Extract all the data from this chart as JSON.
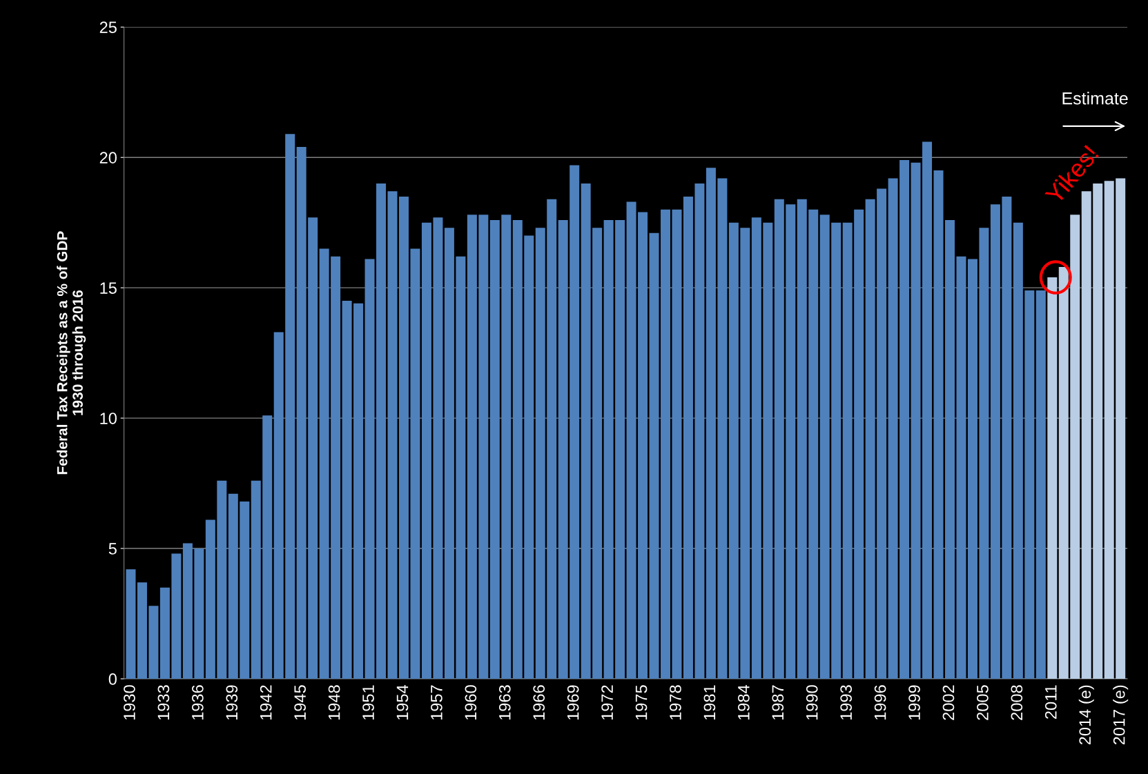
{
  "chart_data": {
    "type": "bar",
    "ylabel": "Federal Tax Receipts as a % of GDP\n1930 through 2016",
    "categories": [
      "1930",
      null,
      null,
      "1933",
      null,
      null,
      "1936",
      null,
      null,
      "1939",
      null,
      null,
      "1942",
      null,
      null,
      "1945",
      null,
      null,
      "1948",
      null,
      null,
      "1951",
      null,
      null,
      "1954",
      null,
      null,
      "1957",
      null,
      null,
      "1960",
      null,
      null,
      "1963",
      null,
      null,
      "1966",
      null,
      null,
      "1969",
      null,
      null,
      "1972",
      null,
      null,
      "1975",
      null,
      null,
      "1978",
      null,
      null,
      "1981",
      null,
      null,
      "1984",
      null,
      null,
      "1987",
      null,
      null,
      "1990",
      null,
      null,
      "1993",
      null,
      null,
      "1996",
      null,
      null,
      "1999",
      null,
      null,
      "2002",
      null,
      null,
      "2005",
      null,
      null,
      "2008",
      null,
      null,
      "2011",
      null,
      null,
      "2014 (e)",
      null,
      null,
      "2017 (e)"
    ],
    "values": [
      4.2,
      3.7,
      2.8,
      3.5,
      4.8,
      5.2,
      5.0,
      6.1,
      7.6,
      7.1,
      6.8,
      7.6,
      10.1,
      13.3,
      20.9,
      20.4,
      17.7,
      16.5,
      16.2,
      14.5,
      14.4,
      16.1,
      19.0,
      18.7,
      18.5,
      16.5,
      17.5,
      17.7,
      17.3,
      16.2,
      17.8,
      17.8,
      17.6,
      17.8,
      17.6,
      17.0,
      17.3,
      18.4,
      17.6,
      19.7,
      19.0,
      17.3,
      17.6,
      17.6,
      18.3,
      17.9,
      17.1,
      18.0,
      18.0,
      18.5,
      19.0,
      19.6,
      19.2,
      17.5,
      17.3,
      17.7,
      17.5,
      18.4,
      18.2,
      18.4,
      18.0,
      17.8,
      17.5,
      17.5,
      18.0,
      18.4,
      18.8,
      19.2,
      19.9,
      19.8,
      20.6,
      19.5,
      17.6,
      16.2,
      16.1,
      17.3,
      18.2,
      18.5,
      17.5,
      14.9,
      14.9,
      15.4,
      15.8,
      17.8,
      18.7,
      19.0,
      19.1,
      19.2
    ],
    "colors": [
      "#4f81bd",
      "#4f81bd",
      "#4f81bd",
      "#4f81bd",
      "#4f81bd",
      "#4f81bd",
      "#4f81bd",
      "#4f81bd",
      "#4f81bd",
      "#4f81bd",
      "#4f81bd",
      "#4f81bd",
      "#4f81bd",
      "#4f81bd",
      "#4f81bd",
      "#4f81bd",
      "#4f81bd",
      "#4f81bd",
      "#4f81bd",
      "#4f81bd",
      "#4f81bd",
      "#4f81bd",
      "#4f81bd",
      "#4f81bd",
      "#4f81bd",
      "#4f81bd",
      "#4f81bd",
      "#4f81bd",
      "#4f81bd",
      "#4f81bd",
      "#4f81bd",
      "#4f81bd",
      "#4f81bd",
      "#4f81bd",
      "#4f81bd",
      "#4f81bd",
      "#4f81bd",
      "#4f81bd",
      "#4f81bd",
      "#4f81bd",
      "#4f81bd",
      "#4f81bd",
      "#4f81bd",
      "#4f81bd",
      "#4f81bd",
      "#4f81bd",
      "#4f81bd",
      "#4f81bd",
      "#4f81bd",
      "#4f81bd",
      "#4f81bd",
      "#4f81bd",
      "#4f81bd",
      "#4f81bd",
      "#4f81bd",
      "#4f81bd",
      "#4f81bd",
      "#4f81bd",
      "#4f81bd",
      "#4f81bd",
      "#4f81bd",
      "#4f81bd",
      "#4f81bd",
      "#4f81bd",
      "#4f81bd",
      "#4f81bd",
      "#4f81bd",
      "#4f81bd",
      "#4f81bd",
      "#4f81bd",
      "#4f81bd",
      "#4f81bd",
      "#4f81bd",
      "#4f81bd",
      "#4f81bd",
      "#4f81bd",
      "#4f81bd",
      "#4f81bd",
      "#4f81bd",
      "#4f81bd",
      "#4f81bd",
      "#b9cde5",
      "#b9cde5",
      "#b9cde5",
      "#b9cde5",
      "#b9cde5",
      "#b9cde5",
      "#b9cde5"
    ],
    "ylim": [
      0,
      25
    ],
    "yticks": [
      0,
      5,
      10,
      15,
      20,
      25
    ],
    "grid": "y",
    "annotations": [
      "Estimate",
      {
        "text": "Yikes!",
        "x": "2011",
        "y": 15.4
      }
    ]
  }
}
